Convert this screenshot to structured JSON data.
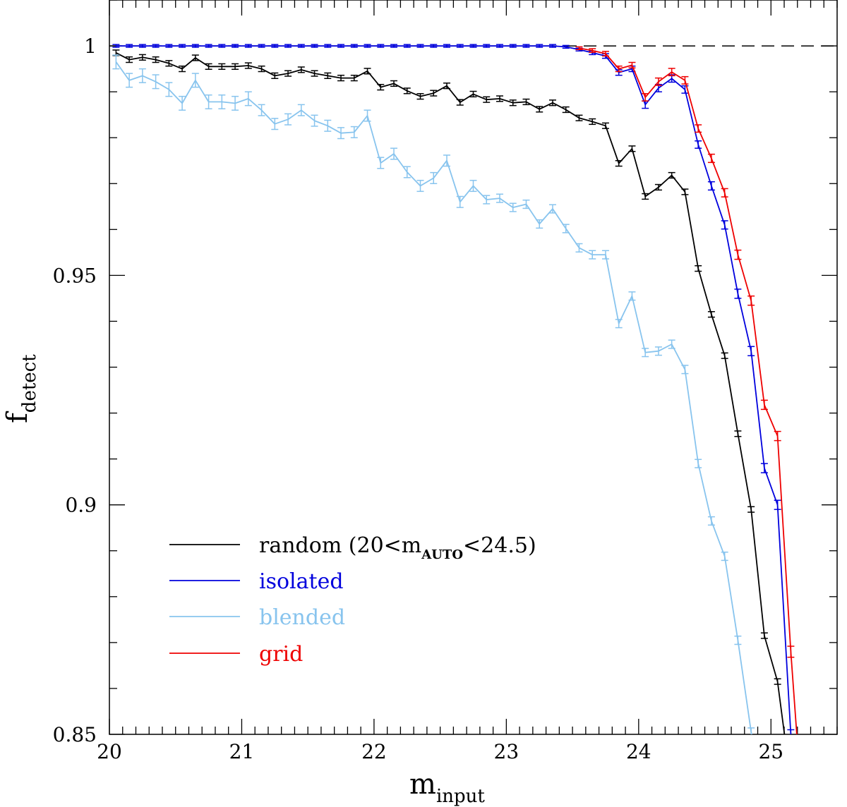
{
  "chart_data": {
    "type": "line",
    "title": "",
    "xlabel": {
      "main": "m",
      "sub": "input"
    },
    "ylabel": {
      "main": "f",
      "sub": "detect"
    },
    "xlim": [
      20,
      25.5
    ],
    "ylim": [
      0.85,
      1.01
    ],
    "x_ticks": [
      20,
      21,
      22,
      23,
      24,
      25
    ],
    "x_tick_labels": [
      "20",
      "21",
      "22",
      "23",
      "24",
      "25"
    ],
    "y_ticks": [
      0.85,
      0.9,
      0.95,
      1.0
    ],
    "y_tick_labels": [
      "0.85",
      "0.9",
      "0.95",
      "1"
    ],
    "reference_line": {
      "y": 1.0,
      "style": "dashed",
      "color": "#000000"
    },
    "legend_position": "bottom-left",
    "series": [
      {
        "name": "random",
        "label_main": "random (20<m",
        "label_sub": "AUTO",
        "label_end": "<24.5)",
        "color": "#000000",
        "x": [
          20.05,
          20.15,
          20.25,
          20.35,
          20.45,
          20.55,
          20.65,
          20.75,
          20.85,
          20.95,
          21.05,
          21.15,
          21.25,
          21.35,
          21.45,
          21.55,
          21.65,
          21.75,
          21.85,
          21.95,
          22.05,
          22.15,
          22.25,
          22.35,
          22.45,
          22.55,
          22.65,
          22.75,
          22.85,
          22.95,
          23.05,
          23.15,
          23.25,
          23.35,
          23.45,
          23.55,
          23.65,
          23.75,
          23.85,
          23.95,
          24.05,
          24.15,
          24.25,
          24.35,
          24.45,
          24.55,
          24.65,
          24.75,
          24.85,
          24.95,
          25.05,
          25.12
        ],
        "y": [
          0.9985,
          0.997,
          0.9975,
          0.997,
          0.9962,
          0.995,
          0.9974,
          0.9955,
          0.9955,
          0.9955,
          0.9957,
          0.995,
          0.9935,
          0.994,
          0.9948,
          0.994,
          0.9935,
          0.993,
          0.993,
          0.9945,
          0.991,
          0.9918,
          0.9902,
          0.989,
          0.9897,
          0.9913,
          0.9877,
          0.9895,
          0.9883,
          0.9885,
          0.9876,
          0.9878,
          0.9862,
          0.9876,
          0.9861,
          0.9843,
          0.9835,
          0.9826,
          0.9744,
          0.9776,
          0.9672,
          0.9692,
          0.9718,
          0.9682,
          0.9515,
          0.9415,
          0.9325,
          0.9155,
          0.899,
          0.8715,
          0.8615,
          0.846
        ],
        "err": [
          0.0006,
          0.0006,
          0.0006,
          0.0006,
          0.0006,
          0.0006,
          0.0006,
          0.0006,
          0.0006,
          0.0006,
          0.0006,
          0.0006,
          0.0006,
          0.0006,
          0.0006,
          0.0006,
          0.0006,
          0.0006,
          0.0006,
          0.0006,
          0.0006,
          0.0006,
          0.0006,
          0.0006,
          0.0006,
          0.0006,
          0.0006,
          0.0006,
          0.0006,
          0.0006,
          0.0006,
          0.0006,
          0.0006,
          0.0006,
          0.0006,
          0.0006,
          0.0006,
          0.0006,
          0.0006,
          0.0006,
          0.0006,
          0.0006,
          0.0006,
          0.0006,
          0.0006,
          0.0006,
          0.0006,
          0.0006,
          0.0006,
          0.0006,
          0.0006,
          0.0006
        ]
      },
      {
        "name": "isolated",
        "label_main": "isolated",
        "color": "#0000dd",
        "x": [
          20.05,
          20.15,
          20.25,
          20.35,
          20.45,
          20.55,
          20.65,
          20.75,
          20.85,
          20.95,
          21.05,
          21.15,
          21.25,
          21.35,
          21.45,
          21.55,
          21.65,
          21.75,
          21.85,
          21.95,
          22.05,
          22.15,
          22.25,
          22.35,
          22.45,
          22.55,
          22.65,
          22.75,
          22.85,
          22.95,
          23.05,
          23.15,
          23.25,
          23.35,
          23.45,
          23.55,
          23.65,
          23.75,
          23.85,
          23.95,
          24.05,
          24.15,
          24.25,
          24.35,
          24.45,
          24.55,
          24.65,
          24.75,
          24.85,
          24.95,
          25.05,
          25.15
        ],
        "y": [
          1.0,
          1.0,
          1.0,
          1.0,
          1.0,
          1.0,
          1.0,
          1.0,
          1.0,
          1.0,
          1.0,
          1.0,
          1.0,
          1.0,
          1.0,
          1.0,
          1.0,
          1.0,
          1.0,
          1.0,
          1.0,
          1.0,
          1.0,
          1.0,
          1.0,
          1.0,
          1.0,
          1.0,
          1.0,
          1.0,
          1.0,
          1.0,
          1.0,
          1.0,
          0.9998,
          0.9992,
          0.9985,
          0.9978,
          0.9942,
          0.995,
          0.9872,
          0.9908,
          0.9929,
          0.9905,
          0.9785,
          0.9695,
          0.961,
          0.946,
          0.9335,
          0.908,
          0.9,
          0.85
        ],
        "err": [
          0.0003,
          0.0003,
          0.0003,
          0.0003,
          0.0003,
          0.0003,
          0.0003,
          0.0003,
          0.0003,
          0.0003,
          0.0003,
          0.0003,
          0.0003,
          0.0003,
          0.0003,
          0.0003,
          0.0003,
          0.0003,
          0.0003,
          0.0003,
          0.0003,
          0.0003,
          0.0003,
          0.0003,
          0.0003,
          0.0003,
          0.0003,
          0.0003,
          0.0003,
          0.0003,
          0.0003,
          0.0003,
          0.0003,
          0.0003,
          0.0003,
          0.0003,
          0.0004,
          0.0005,
          0.0006,
          0.0006,
          0.0008,
          0.0008,
          0.0008,
          0.0008,
          0.0008,
          0.0009,
          0.0009,
          0.001,
          0.001,
          0.001,
          0.001,
          0.001
        ]
      },
      {
        "name": "blended",
        "label_main": "blended",
        "color": "#88c4ee",
        "x": [
          20.05,
          20.15,
          20.25,
          20.35,
          20.45,
          20.55,
          20.65,
          20.75,
          20.85,
          20.95,
          21.05,
          21.15,
          21.25,
          21.35,
          21.45,
          21.55,
          21.65,
          21.75,
          21.85,
          21.95,
          22.05,
          22.15,
          22.25,
          22.35,
          22.45,
          22.55,
          22.65,
          22.75,
          22.85,
          22.95,
          23.05,
          23.15,
          23.25,
          23.35,
          23.45,
          23.55,
          23.65,
          23.75,
          23.85,
          23.95,
          24.05,
          24.15,
          24.25,
          24.35,
          24.45,
          24.55,
          24.65,
          24.75,
          24.85,
          24.9
        ],
        "y": [
          0.9965,
          0.9925,
          0.9935,
          0.9922,
          0.9905,
          0.9875,
          0.9925,
          0.9878,
          0.9878,
          0.9875,
          0.9885,
          0.986,
          0.983,
          0.984,
          0.986,
          0.9837,
          0.9826,
          0.981,
          0.9812,
          0.9848,
          0.9745,
          0.9765,
          0.9725,
          0.9695,
          0.9712,
          0.975,
          0.966,
          0.9695,
          0.9665,
          0.9668,
          0.9648,
          0.9655,
          0.9612,
          0.9645,
          0.9602,
          0.956,
          0.9545,
          0.9545,
          0.9395,
          0.9455,
          0.9332,
          0.9335,
          0.935,
          0.9295,
          0.909,
          0.8965,
          0.8888,
          0.8705,
          0.8505,
          0.8445
        ],
        "err": [
          0.0015,
          0.0015,
          0.0015,
          0.0015,
          0.0015,
          0.0015,
          0.0015,
          0.0015,
          0.0015,
          0.0015,
          0.0015,
          0.0012,
          0.0012,
          0.0012,
          0.0012,
          0.0012,
          0.0012,
          0.0012,
          0.0012,
          0.0012,
          0.0012,
          0.0012,
          0.0012,
          0.0012,
          0.0012,
          0.0012,
          0.0012,
          0.0012,
          0.0009,
          0.0009,
          0.0009,
          0.0009,
          0.0009,
          0.0009,
          0.0009,
          0.0009,
          0.0009,
          0.0009,
          0.0009,
          0.0009,
          0.0009,
          0.0009,
          0.0009,
          0.0009,
          0.0009,
          0.0009,
          0.0009,
          0.0009,
          0.0009,
          0.0009
        ]
      },
      {
        "name": "grid",
        "label_main": "grid",
        "color": "#ee0000",
        "x": [
          23.55,
          23.65,
          23.75,
          23.85,
          23.95,
          24.05,
          24.15,
          24.25,
          24.35,
          24.45,
          24.55,
          24.65,
          24.75,
          24.85,
          24.95,
          25.05,
          25.15,
          25.2
        ],
        "y": [
          0.9995,
          0.999,
          0.9983,
          0.995,
          0.9958,
          0.9888,
          0.9922,
          0.9943,
          0.9925,
          0.982,
          0.9755,
          0.968,
          0.9545,
          0.9445,
          0.9218,
          0.915,
          0.868,
          0.848
        ],
        "err": [
          0.0003,
          0.0004,
          0.0005,
          0.0006,
          0.0006,
          0.0008,
          0.0008,
          0.0008,
          0.0008,
          0.0008,
          0.0009,
          0.0009,
          0.001,
          0.001,
          0.001,
          0.001,
          0.0012,
          0.0012
        ]
      }
    ]
  }
}
